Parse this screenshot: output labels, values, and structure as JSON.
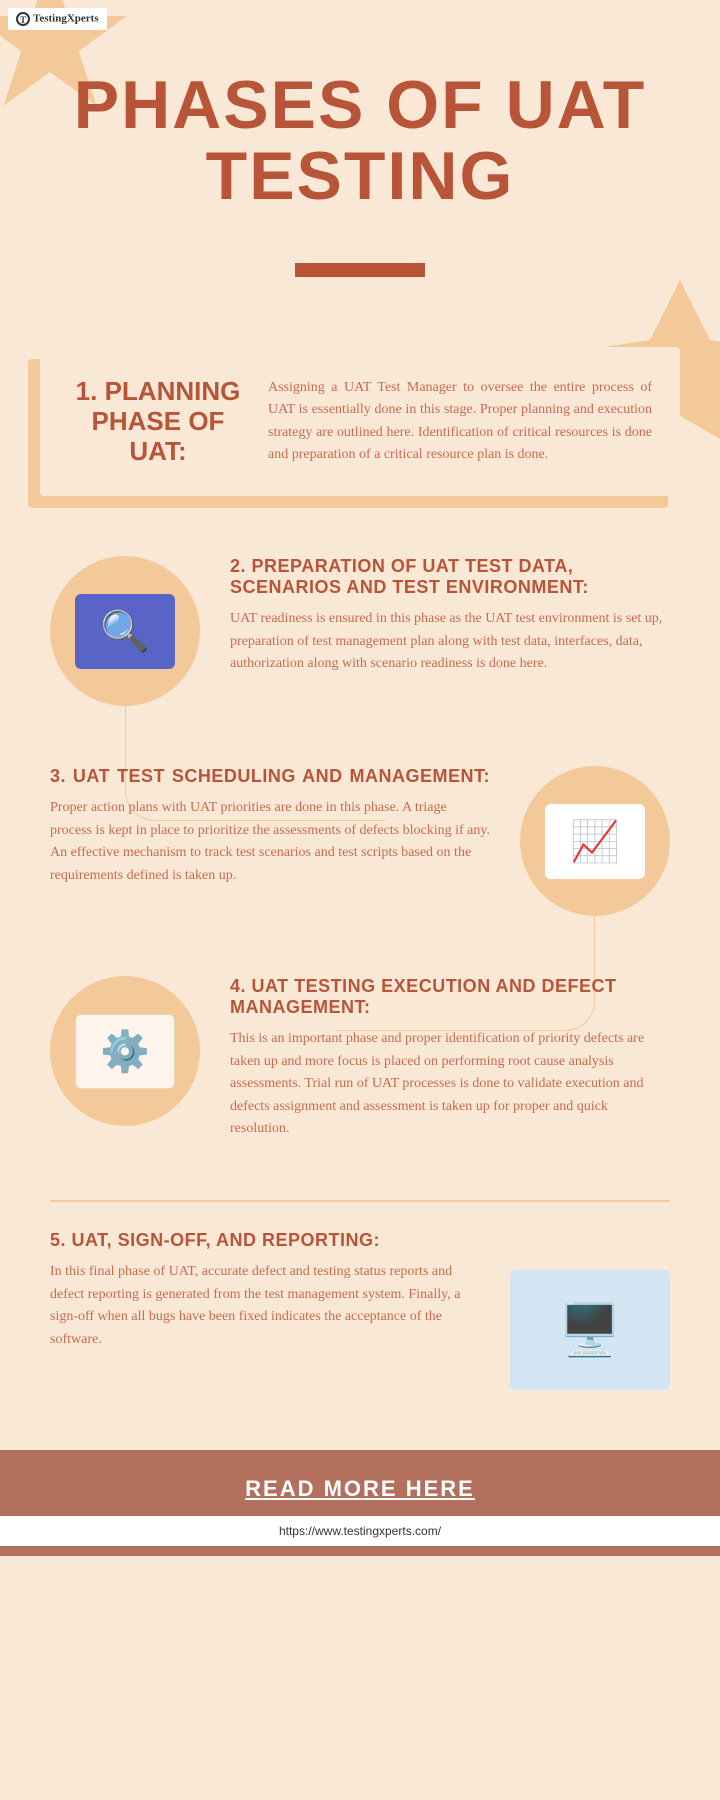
{
  "logo": {
    "brand": "TestingXperts"
  },
  "title": "PHASES OF UAT TESTING",
  "colors": {
    "background": "#fae8d6",
    "accent": "#b85438",
    "accent_light": "#f4c999",
    "text_body": "#c86b4f",
    "footer_bg": "#b2705d",
    "icon_blue": "#5865c7",
    "icon_lightblue": "#d4e6f4"
  },
  "phases": [
    {
      "title": "1. PLANNING PHASE OF UAT:",
      "description": "Assigning a UAT Test Manager to oversee the entire process of UAT is essentially done in this stage. Proper planning and execution strategy are outlined here. Identification of critical resources is done and preparation of a critical resource plan is done."
    },
    {
      "title": "2. PREPARATION OF UAT TEST DATA, SCENARIOS AND TEST ENVIRONMENT:",
      "description": "UAT readiness is ensured in this phase as the UAT test environment is set up, preparation of test management plan along with test data, interfaces, data, authorization along with scenario readiness is done here.",
      "icon": "🔍"
    },
    {
      "title": "3. UAT TEST SCHEDULING AND MANAGEMENT:",
      "description": "Proper action plans with UAT priorities are done in this phase. A triage process is kept in place to prioritize the assessments of defects blocking if any. An effective mechanism to track test scenarios and test scripts based on the requirements defined is taken up.",
      "icon": "📈"
    },
    {
      "title": "4. UAT TESTING EXECUTION AND DEFECT MANAGEMENT:",
      "description": "This is an important phase and proper identification of priority defects are taken up and more focus is placed on performing root cause analysis assessments. Trial run of UAT processes is done to validate execution and defects assignment and assessment is taken up for proper and quick resolution.",
      "icon": "⚙️"
    },
    {
      "title": "5. UAT, SIGN-OFF, AND REPORTING:",
      "description": "In this final phase of UAT, accurate defect and testing status reports and defect reporting is generated from the test management system. Finally, a sign-off when all bugs have been fixed indicates the acceptance of the software.",
      "icon": "🖥️"
    }
  ],
  "footer": {
    "cta": "READ MORE HERE",
    "url": "https://www.testingxperts.com/"
  }
}
